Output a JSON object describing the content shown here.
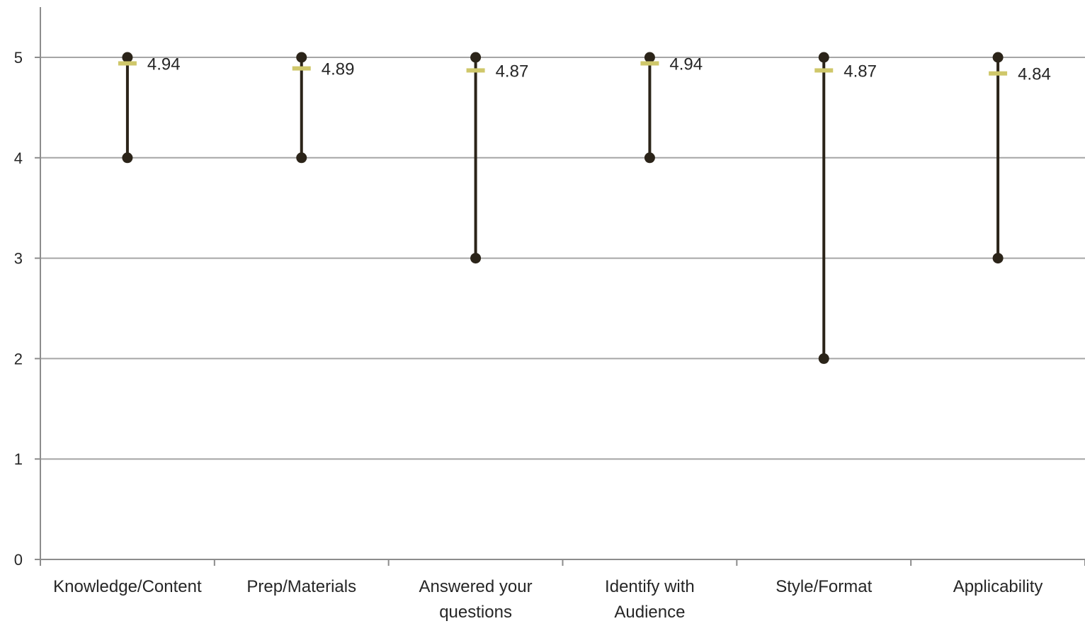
{
  "chart_data": {
    "type": "high-low-mean",
    "categories": [
      [
        "Knowledge/Content"
      ],
      [
        "Prep/Materials"
      ],
      [
        "Answered your",
        "questions"
      ],
      [
        "Identify with",
        "Audience"
      ],
      [
        "Style/Format"
      ],
      [
        "Applicability"
      ]
    ],
    "high": [
      5,
      5,
      5,
      5,
      5,
      5
    ],
    "low": [
      4,
      4,
      3,
      4,
      2,
      3
    ],
    "mean": [
      4.94,
      4.89,
      4.87,
      4.94,
      4.87,
      4.84
    ],
    "mean_labels": [
      "4.94",
      "4.89",
      "4.87",
      "4.94",
      "4.87",
      "4.84"
    ],
    "yticks": [
      "0",
      "1",
      "2",
      "3",
      "4",
      "5"
    ],
    "ylim": [
      0,
      5.5
    ],
    "grid": true,
    "colors": {
      "range_line": "#2b2419",
      "marker": "#2b2419",
      "mean_tick": "#cfc76a",
      "gridline": "#a6a6a6",
      "axis": "#8c8c8c"
    }
  }
}
